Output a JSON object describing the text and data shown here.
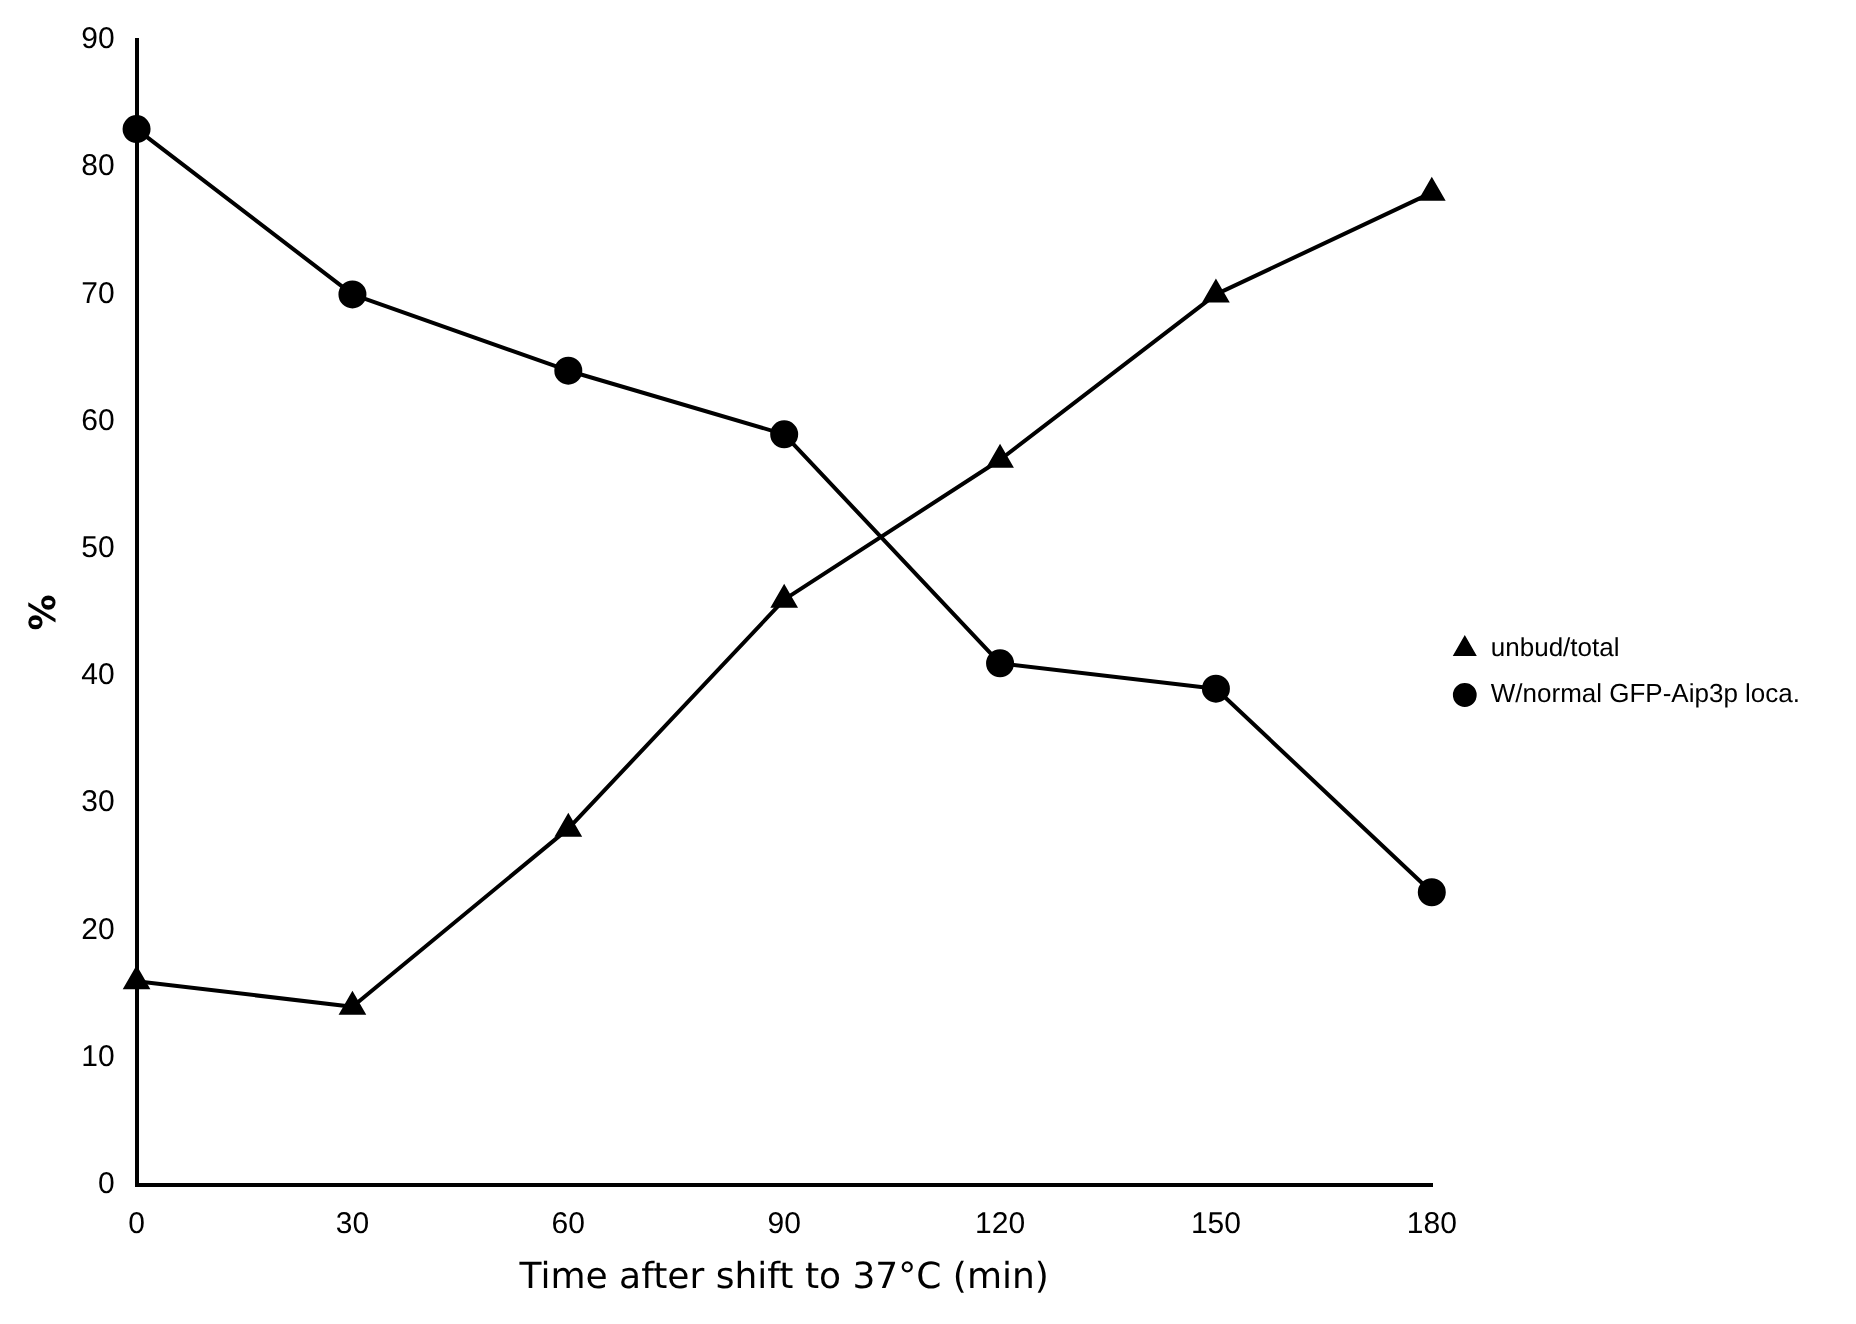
{
  "chart_data": {
    "type": "line",
    "xlabel": "Time after shift to 37°C (min)",
    "ylabel": "%",
    "x": [
      0,
      30,
      60,
      90,
      120,
      150,
      180
    ],
    "xlim": [
      0,
      180
    ],
    "xticks": [
      0,
      30,
      60,
      90,
      120,
      150,
      180
    ],
    "ylim": [
      0,
      90
    ],
    "yticks": [
      0,
      10,
      20,
      30,
      40,
      50,
      60,
      70,
      80,
      90
    ],
    "grid": false,
    "legend": "right",
    "line_style": "solid",
    "series": [
      {
        "name": "unbud/total",
        "color": "#000000",
        "marker": "triangle",
        "values": [
          16,
          14,
          28,
          46,
          57,
          70,
          78
        ]
      },
      {
        "name": "W/normal GFP-Aip3p loca.",
        "color": "#000000",
        "marker": "circle",
        "values": [
          83,
          70,
          64,
          59,
          41,
          39,
          23
        ]
      }
    ]
  }
}
